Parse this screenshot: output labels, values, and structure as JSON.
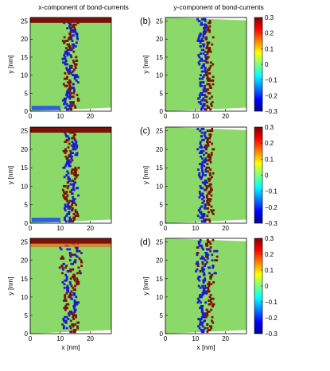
{
  "column_titles": [
    "x-component of bond-currents",
    "y-component of bond-currents"
  ],
  "panel_labels": [
    "",
    "(b)",
    "",
    "(c)",
    "",
    "(d)"
  ],
  "colors": {
    "background": "#8bd968",
    "red": "#7a1208",
    "blue": "#1c1ccc",
    "mid_blue": "#2d5fe0",
    "orange": "#e46a1c"
  },
  "colorbar": {
    "ticks": [
      0.3,
      0.2,
      0.1,
      0,
      -0.1,
      -0.2,
      -0.3
    ],
    "tick_labels": [
      "0.3",
      "0.2",
      "0.1",
      "0",
      "−0.1",
      "−0.2",
      "−0.3"
    ],
    "range": [
      -0.3,
      0.3
    ],
    "colormap": "jet"
  },
  "chart_data": {
    "type": "heatmap",
    "xlabel": "x  [nm]",
    "ylabel": "y  [nm]",
    "xlim": [
      0,
      27
    ],
    "ylim": [
      0,
      26
    ],
    "x_ticks": [
      0,
      10,
      20
    ],
    "y_ticks": [
      0,
      5,
      10,
      15,
      20,
      25
    ],
    "x_tick_labels": [
      "0",
      "10",
      "20"
    ],
    "y_tick_labels": [
      "0",
      "5",
      "10",
      "15",
      "20",
      "25"
    ],
    "panels": [
      {
        "component": "x",
        "row": 0
      },
      {
        "component": "y",
        "row": 0
      },
      {
        "component": "x",
        "row": 1
      },
      {
        "component": "y",
        "row": 1
      },
      {
        "component": "x",
        "row": 2
      },
      {
        "component": "y",
        "row": 2
      }
    ]
  }
}
